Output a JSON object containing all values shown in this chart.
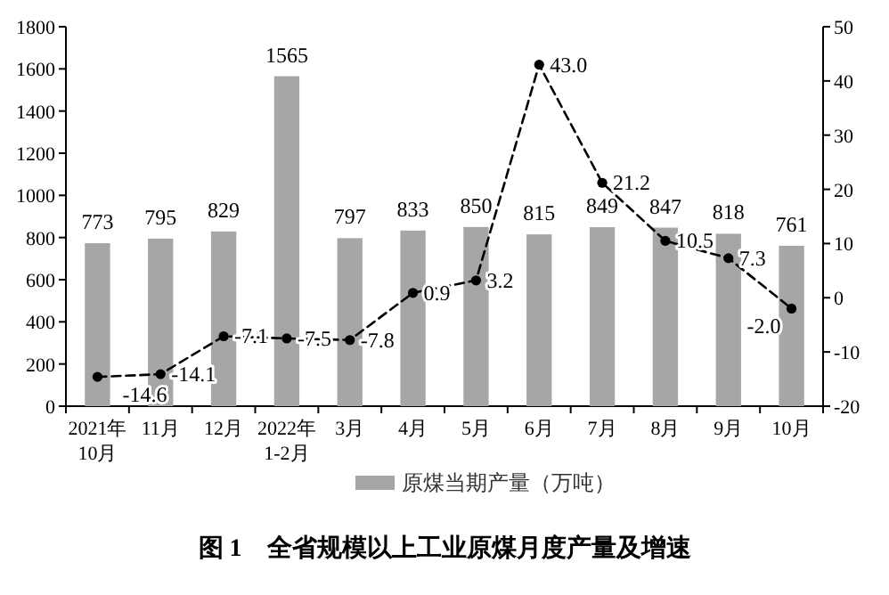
{
  "chart_data": {
    "type": "bar",
    "title": "图 1　全省规模以上工业原煤月度产量及增速",
    "categories": [
      "2021年\n10月",
      "11月",
      "12月",
      "2022年\n1-2月",
      "3月",
      "4月",
      "5月",
      "6月",
      "7月",
      "8月",
      "9月",
      "10月"
    ],
    "series": [
      {
        "name": "原煤当期产量（万吨）",
        "color": "#a6a6a6",
        "values": [
          773,
          795,
          829,
          1565,
          797,
          833,
          850,
          815,
          849,
          847,
          818,
          761
        ],
        "value_labels": [
          "773",
          "795",
          "829",
          "1565",
          "797",
          "833",
          "850",
          "815",
          "849",
          "847",
          "818",
          "761"
        ]
      },
      {
        "type": "line",
        "axis": "y2",
        "color": "#000000",
        "marker": "circle",
        "line_style": "dashed",
        "values": [
          -14.6,
          -14.1,
          -7.1,
          -7.5,
          -7.8,
          0.9,
          3.2,
          43.0,
          21.2,
          10.5,
          7.3,
          -2.0
        ],
        "value_labels": [
          "-14.6",
          "-14.1",
          "-7.1",
          "-7.5",
          "-7.8",
          "0.9",
          "3.2",
          "43.0",
          "21.2",
          "10.5",
          "7.3",
          "-2.0"
        ]
      }
    ],
    "ylim": [
      0,
      1800
    ],
    "yticks": [
      0,
      200,
      400,
      600,
      800,
      1000,
      1200,
      1400,
      1600,
      1800
    ],
    "y2lim": [
      -20,
      50
    ],
    "y2ticks": [
      -20,
      -10,
      0,
      10,
      20,
      30,
      40,
      50
    ],
    "legend": "bottom",
    "grid": false
  }
}
